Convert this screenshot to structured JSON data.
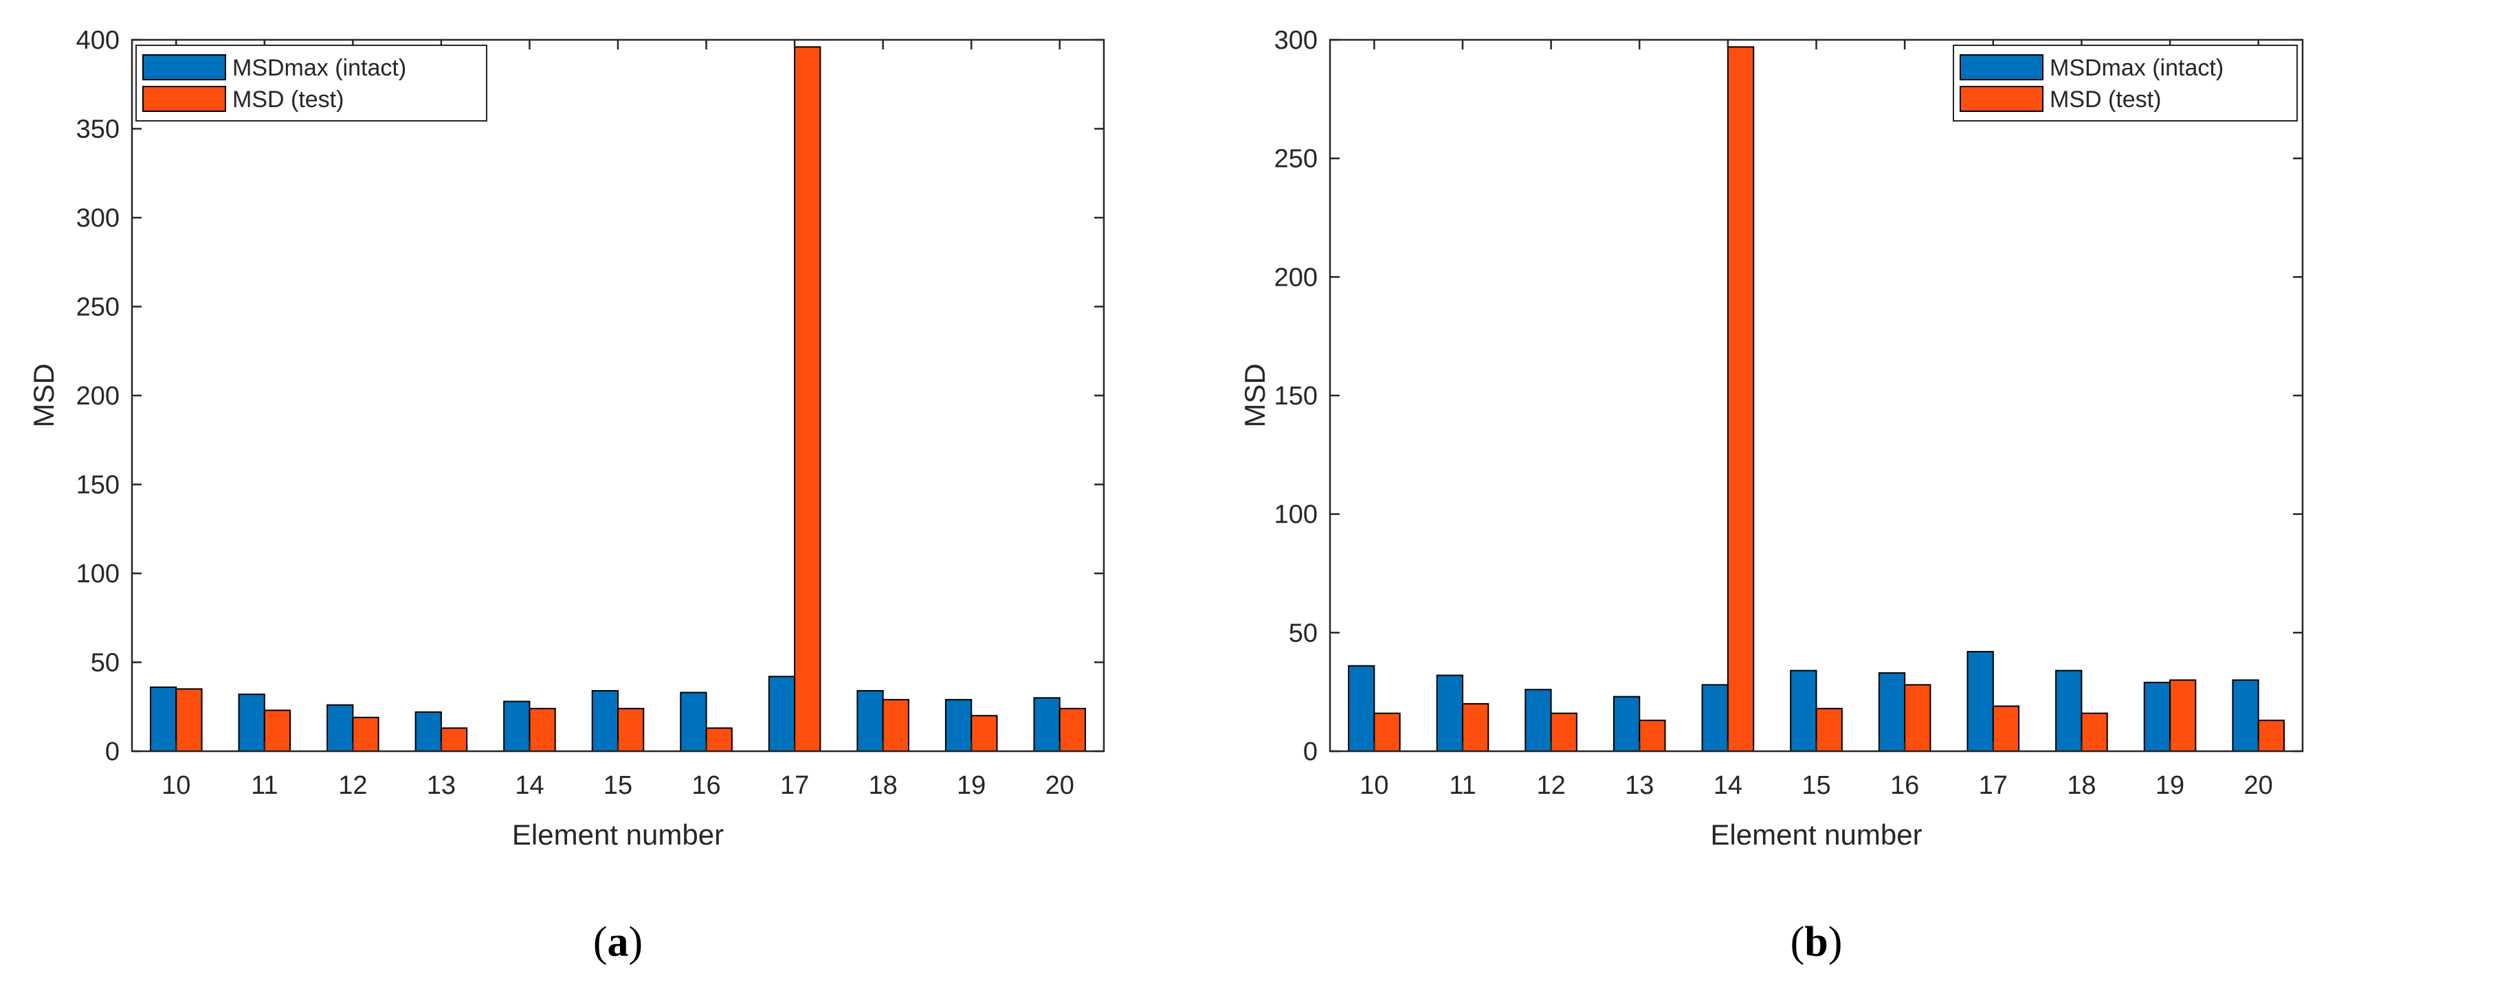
{
  "colors": {
    "intact": "#0072BD",
    "test": "#FF4F0F"
  },
  "chart_data": [
    {
      "type": "bar",
      "panel_label": "a",
      "categories": [
        "10",
        "11",
        "12",
        "13",
        "14",
        "15",
        "16",
        "17",
        "18",
        "19",
        "20"
      ],
      "series": [
        {
          "name": "MSDmax (intact)",
          "values": [
            36,
            32,
            26,
            22,
            28,
            34,
            33,
            42,
            34,
            29,
            30
          ]
        },
        {
          "name": "MSD (test)",
          "values": [
            35,
            23,
            19,
            13,
            24,
            24,
            13,
            396,
            29,
            20,
            24
          ]
        }
      ],
      "xlabel": "Element number",
      "ylabel": "MSD",
      "ylim": [
        0,
        400
      ],
      "yticks": [
        "0",
        "50",
        "100",
        "150",
        "200",
        "250",
        "300",
        "350",
        "400"
      ],
      "legend_position": "top-left",
      "grid": false
    },
    {
      "type": "bar",
      "panel_label": "b",
      "categories": [
        "10",
        "11",
        "12",
        "13",
        "14",
        "15",
        "16",
        "17",
        "18",
        "19",
        "20"
      ],
      "series": [
        {
          "name": "MSDmax (intact)",
          "values": [
            36,
            32,
            26,
            23,
            28,
            34,
            33,
            42,
            34,
            29,
            30
          ]
        },
        {
          "name": "MSD (test)",
          "values": [
            16,
            20,
            16,
            13,
            297,
            18,
            28,
            19,
            16,
            30,
            13
          ]
        }
      ],
      "xlabel": "Element number",
      "ylabel": "MSD",
      "ylim": [
        0,
        300
      ],
      "yticks": [
        "0",
        "50",
        "100",
        "150",
        "200",
        "250",
        "300"
      ],
      "legend_position": "top-right",
      "grid": false
    }
  ]
}
